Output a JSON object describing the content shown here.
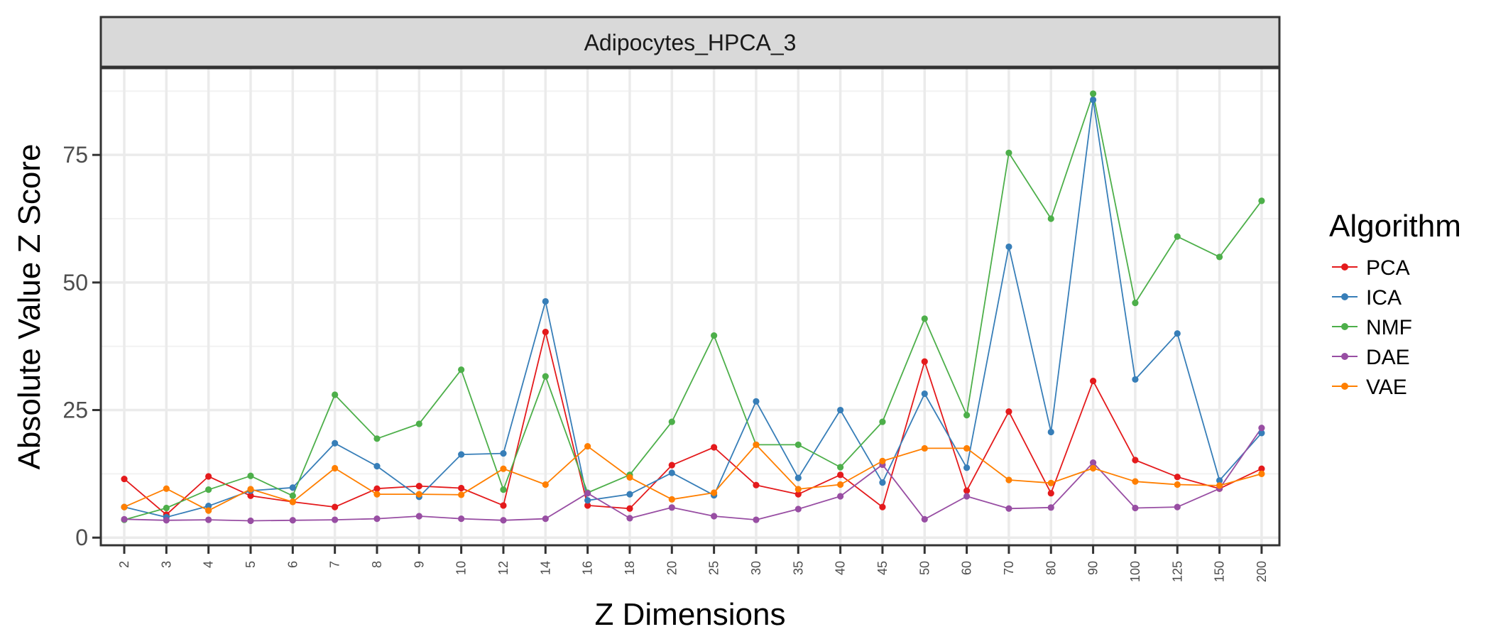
{
  "chart_data": {
    "type": "line",
    "title": "Adipocytes_HPCA_3",
    "xlabel": "Z Dimensions",
    "ylabel": "Absolute Value Z Score",
    "categories": [
      "2",
      "3",
      "4",
      "5",
      "6",
      "7",
      "8",
      "9",
      "10",
      "12",
      "14",
      "16",
      "18",
      "20",
      "25",
      "30",
      "35",
      "40",
      "45",
      "50",
      "60",
      "70",
      "80",
      "90",
      "100",
      "125",
      "150",
      "200"
    ],
    "yticks": [
      0,
      25,
      50,
      75
    ],
    "ylim": [
      -1.5,
      92
    ],
    "grid": true,
    "legend": {
      "title": "Algorithm",
      "position": "right"
    },
    "series": [
      {
        "name": "PCA",
        "color": "#E41A1C",
        "values": [
          11.5,
          4.5,
          12,
          8.2,
          7,
          6,
          9.6,
          10.1,
          9.7,
          6.3,
          40.3,
          6.3,
          5.7,
          14.2,
          17.7,
          10.3,
          8.5,
          12.3,
          6,
          34.5,
          9.2,
          24.7,
          8.7,
          30.7,
          15.2,
          11.9,
          9.6,
          13.5
        ]
      },
      {
        "name": "ICA",
        "color": "#377EB8",
        "values": [
          6,
          4,
          6.2,
          9.2,
          9.8,
          18.5,
          14,
          8,
          16.3,
          16.5,
          46.3,
          7.3,
          8.5,
          12.7,
          8.3,
          26.7,
          11.7,
          25,
          10.8,
          28.2,
          13.7,
          57,
          20.7,
          85.8,
          31,
          40,
          11.2,
          20.5
        ]
      },
      {
        "name": "NMF",
        "color": "#4DAF4A",
        "values": [
          3.5,
          5.8,
          9.4,
          12.1,
          8.2,
          28,
          19.4,
          22.3,
          32.9,
          9.4,
          31.6,
          8.8,
          12.3,
          22.7,
          39.6,
          18.2,
          18.2,
          13.8,
          22.7,
          42.9,
          24,
          75.4,
          62.5,
          87,
          46,
          59,
          55,
          66
        ]
      },
      {
        "name": "DAE",
        "color": "#984EA3",
        "values": [
          3.6,
          3.4,
          3.5,
          3.3,
          3.4,
          3.5,
          3.7,
          4.2,
          3.7,
          3.4,
          3.7,
          8.7,
          3.8,
          5.9,
          4.2,
          3.5,
          5.6,
          8.1,
          14.3,
          3.6,
          8.1,
          5.7,
          5.9,
          14.7,
          5.8,
          6,
          9.6,
          21.5
        ]
      },
      {
        "name": "VAE",
        "color": "#FF7F00",
        "values": [
          6,
          9.6,
          5.3,
          9.5,
          7,
          13.6,
          8.5,
          8.5,
          8.4,
          13.5,
          10.4,
          17.9,
          11.8,
          7.5,
          8.8,
          18.2,
          9.5,
          10.4,
          15,
          17.5,
          17.5,
          11.3,
          10.7,
          13.6,
          11,
          10.4,
          10.2,
          12.5
        ]
      }
    ]
  }
}
